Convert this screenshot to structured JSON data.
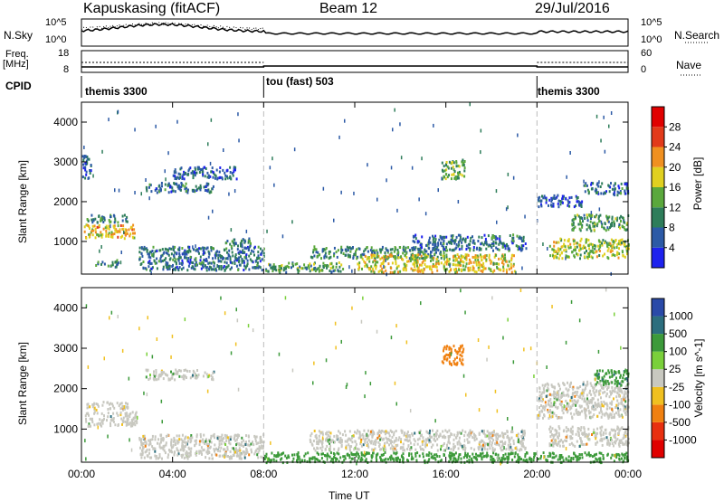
{
  "header": {
    "station": "Kapuskasing (fitACF)",
    "beam": "Beam 12",
    "date": "29/Jul/2016"
  },
  "summary_panels": {
    "nsky_label": "N.Sky",
    "nsky_ticks": [
      "10^5",
      "10^0"
    ],
    "nsearch_label": "N.Search",
    "nsearch_ticks": [
      "10^5",
      "10^0"
    ],
    "freq_label": "Freq.",
    "freq_unit": "[MHz]",
    "freq_ticks": [
      "18",
      "8"
    ],
    "nave_label": "Nave",
    "nave_ticks": [
      "60",
      "0"
    ],
    "cpid_label": "CPID",
    "cpid_segments": [
      {
        "label": "themis 3300",
        "start_hour": 0,
        "end_hour": 8
      },
      {
        "label": "tou (fast) 503",
        "start_hour": 8,
        "end_hour": 20
      },
      {
        "label": "themis 3300",
        "start_hour": 20,
        "end_hour": 24
      }
    ]
  },
  "chart_data": [
    {
      "type": "heatmap",
      "name": "Power",
      "ylabel": "Slant Range [km]",
      "xlabel": "",
      "x_ticks": [
        "00:00",
        "04:00",
        "08:00",
        "12:00",
        "16:00",
        "20:00",
        "00:00"
      ],
      "xlim_hours": [
        0,
        24
      ],
      "ylim": [
        180,
        4500
      ],
      "y_ticks": [
        1000,
        2000,
        3000,
        4000
      ],
      "colorbar_label": "Power [dB]",
      "colorbar_ticks": [
        4,
        8,
        12,
        16,
        20,
        24,
        28
      ],
      "colorbar_colors": [
        "#1e22ee",
        "#2c5aa6",
        "#2e7d5a",
        "#5aa83c",
        "#e0d020",
        "#f09020",
        "#e23a1a",
        "#e00000"
      ],
      "regions": [
        {
          "t": [
            0.1,
            2.4
          ],
          "r": [
            1100,
            1450
          ],
          "level": 20
        },
        {
          "t": [
            0.2,
            2.0
          ],
          "r": [
            1500,
            1700
          ],
          "level": 10
        },
        {
          "t": [
            0.0,
            0.4
          ],
          "r": [
            2600,
            3200
          ],
          "level": 6
        },
        {
          "t": [
            0.6,
            1.6
          ],
          "r": [
            380,
            560
          ],
          "level": 10
        },
        {
          "t": [
            2.8,
            5.8
          ],
          "r": [
            2250,
            2500
          ],
          "level": 8
        },
        {
          "t": [
            4.0,
            6.8
          ],
          "r": [
            2600,
            2900
          ],
          "level": 6
        },
        {
          "t": [
            2.5,
            8.0
          ],
          "r": [
            300,
            900
          ],
          "level": 8
        },
        {
          "t": [
            6.2,
            7.4
          ],
          "r": [
            900,
            1100
          ],
          "level": 10
        },
        {
          "t": [
            8.0,
            11.5
          ],
          "r": [
            250,
            500
          ],
          "level": 12
        },
        {
          "t": [
            10.0,
            16.0
          ],
          "r": [
            600,
            900
          ],
          "level": 10
        },
        {
          "t": [
            12.0,
            19.0
          ],
          "r": [
            250,
            700
          ],
          "level": 18
        },
        {
          "t": [
            14.5,
            19.5
          ],
          "r": [
            800,
            1200
          ],
          "level": 8
        },
        {
          "t": [
            15.8,
            16.8
          ],
          "r": [
            2600,
            3100
          ],
          "level": 14
        },
        {
          "t": [
            20.0,
            22.0
          ],
          "r": [
            1900,
            2200
          ],
          "level": 6
        },
        {
          "t": [
            21.5,
            24.0
          ],
          "r": [
            1300,
            1700
          ],
          "level": 12
        },
        {
          "t": [
            20.5,
            24.0
          ],
          "r": [
            600,
            1100
          ],
          "level": 16
        },
        {
          "t": [
            22.0,
            24.0
          ],
          "r": [
            2200,
            2500
          ],
          "level": 8
        }
      ]
    },
    {
      "type": "heatmap",
      "name": "Velocity",
      "ylabel": "Slant Range [km]",
      "xlabel": "Time UT",
      "x_ticks": [
        "00:00",
        "04:00",
        "08:00",
        "12:00",
        "16:00",
        "20:00",
        "00:00"
      ],
      "xlim_hours": [
        0,
        24
      ],
      "ylim": [
        180,
        4500
      ],
      "y_ticks": [
        1000,
        2000,
        3000,
        4000
      ],
      "colorbar_label": "Velocity [m s^-1]",
      "colorbar_ticks": [
        "1000",
        "500",
        "100",
        "25",
        "-25",
        "-100",
        "-500",
        "-1000"
      ],
      "colorbar_colors": [
        "#2a4aa8",
        "#2c6e7e",
        "#3c9a3a",
        "#7ad03a",
        "#c8c8c0",
        "#f0c020",
        "#f08010",
        "#e83010",
        "#e00000"
      ],
      "regions": [
        {
          "t": [
            0.1,
            2.4
          ],
          "r": [
            1100,
            1450
          ],
          "level": 0
        },
        {
          "t": [
            0.2,
            2.0
          ],
          "r": [
            1500,
            1700
          ],
          "level": 0
        },
        {
          "t": [
            2.8,
            5.8
          ],
          "r": [
            2250,
            2500
          ],
          "level": 0
        },
        {
          "t": [
            2.5,
            8.0
          ],
          "r": [
            300,
            900
          ],
          "level": 0
        },
        {
          "t": [
            8.0,
            24.0
          ],
          "r": [
            200,
            450
          ],
          "level": 60
        },
        {
          "t": [
            10.0,
            19.5
          ],
          "r": [
            500,
            1000
          ],
          "level": 0
        },
        {
          "t": [
            15.8,
            16.8
          ],
          "r": [
            2600,
            3100
          ],
          "level": -300
        },
        {
          "t": [
            20.0,
            24.0
          ],
          "r": [
            1300,
            2200
          ],
          "level": 0
        },
        {
          "t": [
            20.5,
            24.0
          ],
          "r": [
            600,
            1100
          ],
          "level": 0
        },
        {
          "t": [
            22.5,
            24.0
          ],
          "r": [
            2100,
            2500
          ],
          "level": 80
        }
      ]
    }
  ]
}
